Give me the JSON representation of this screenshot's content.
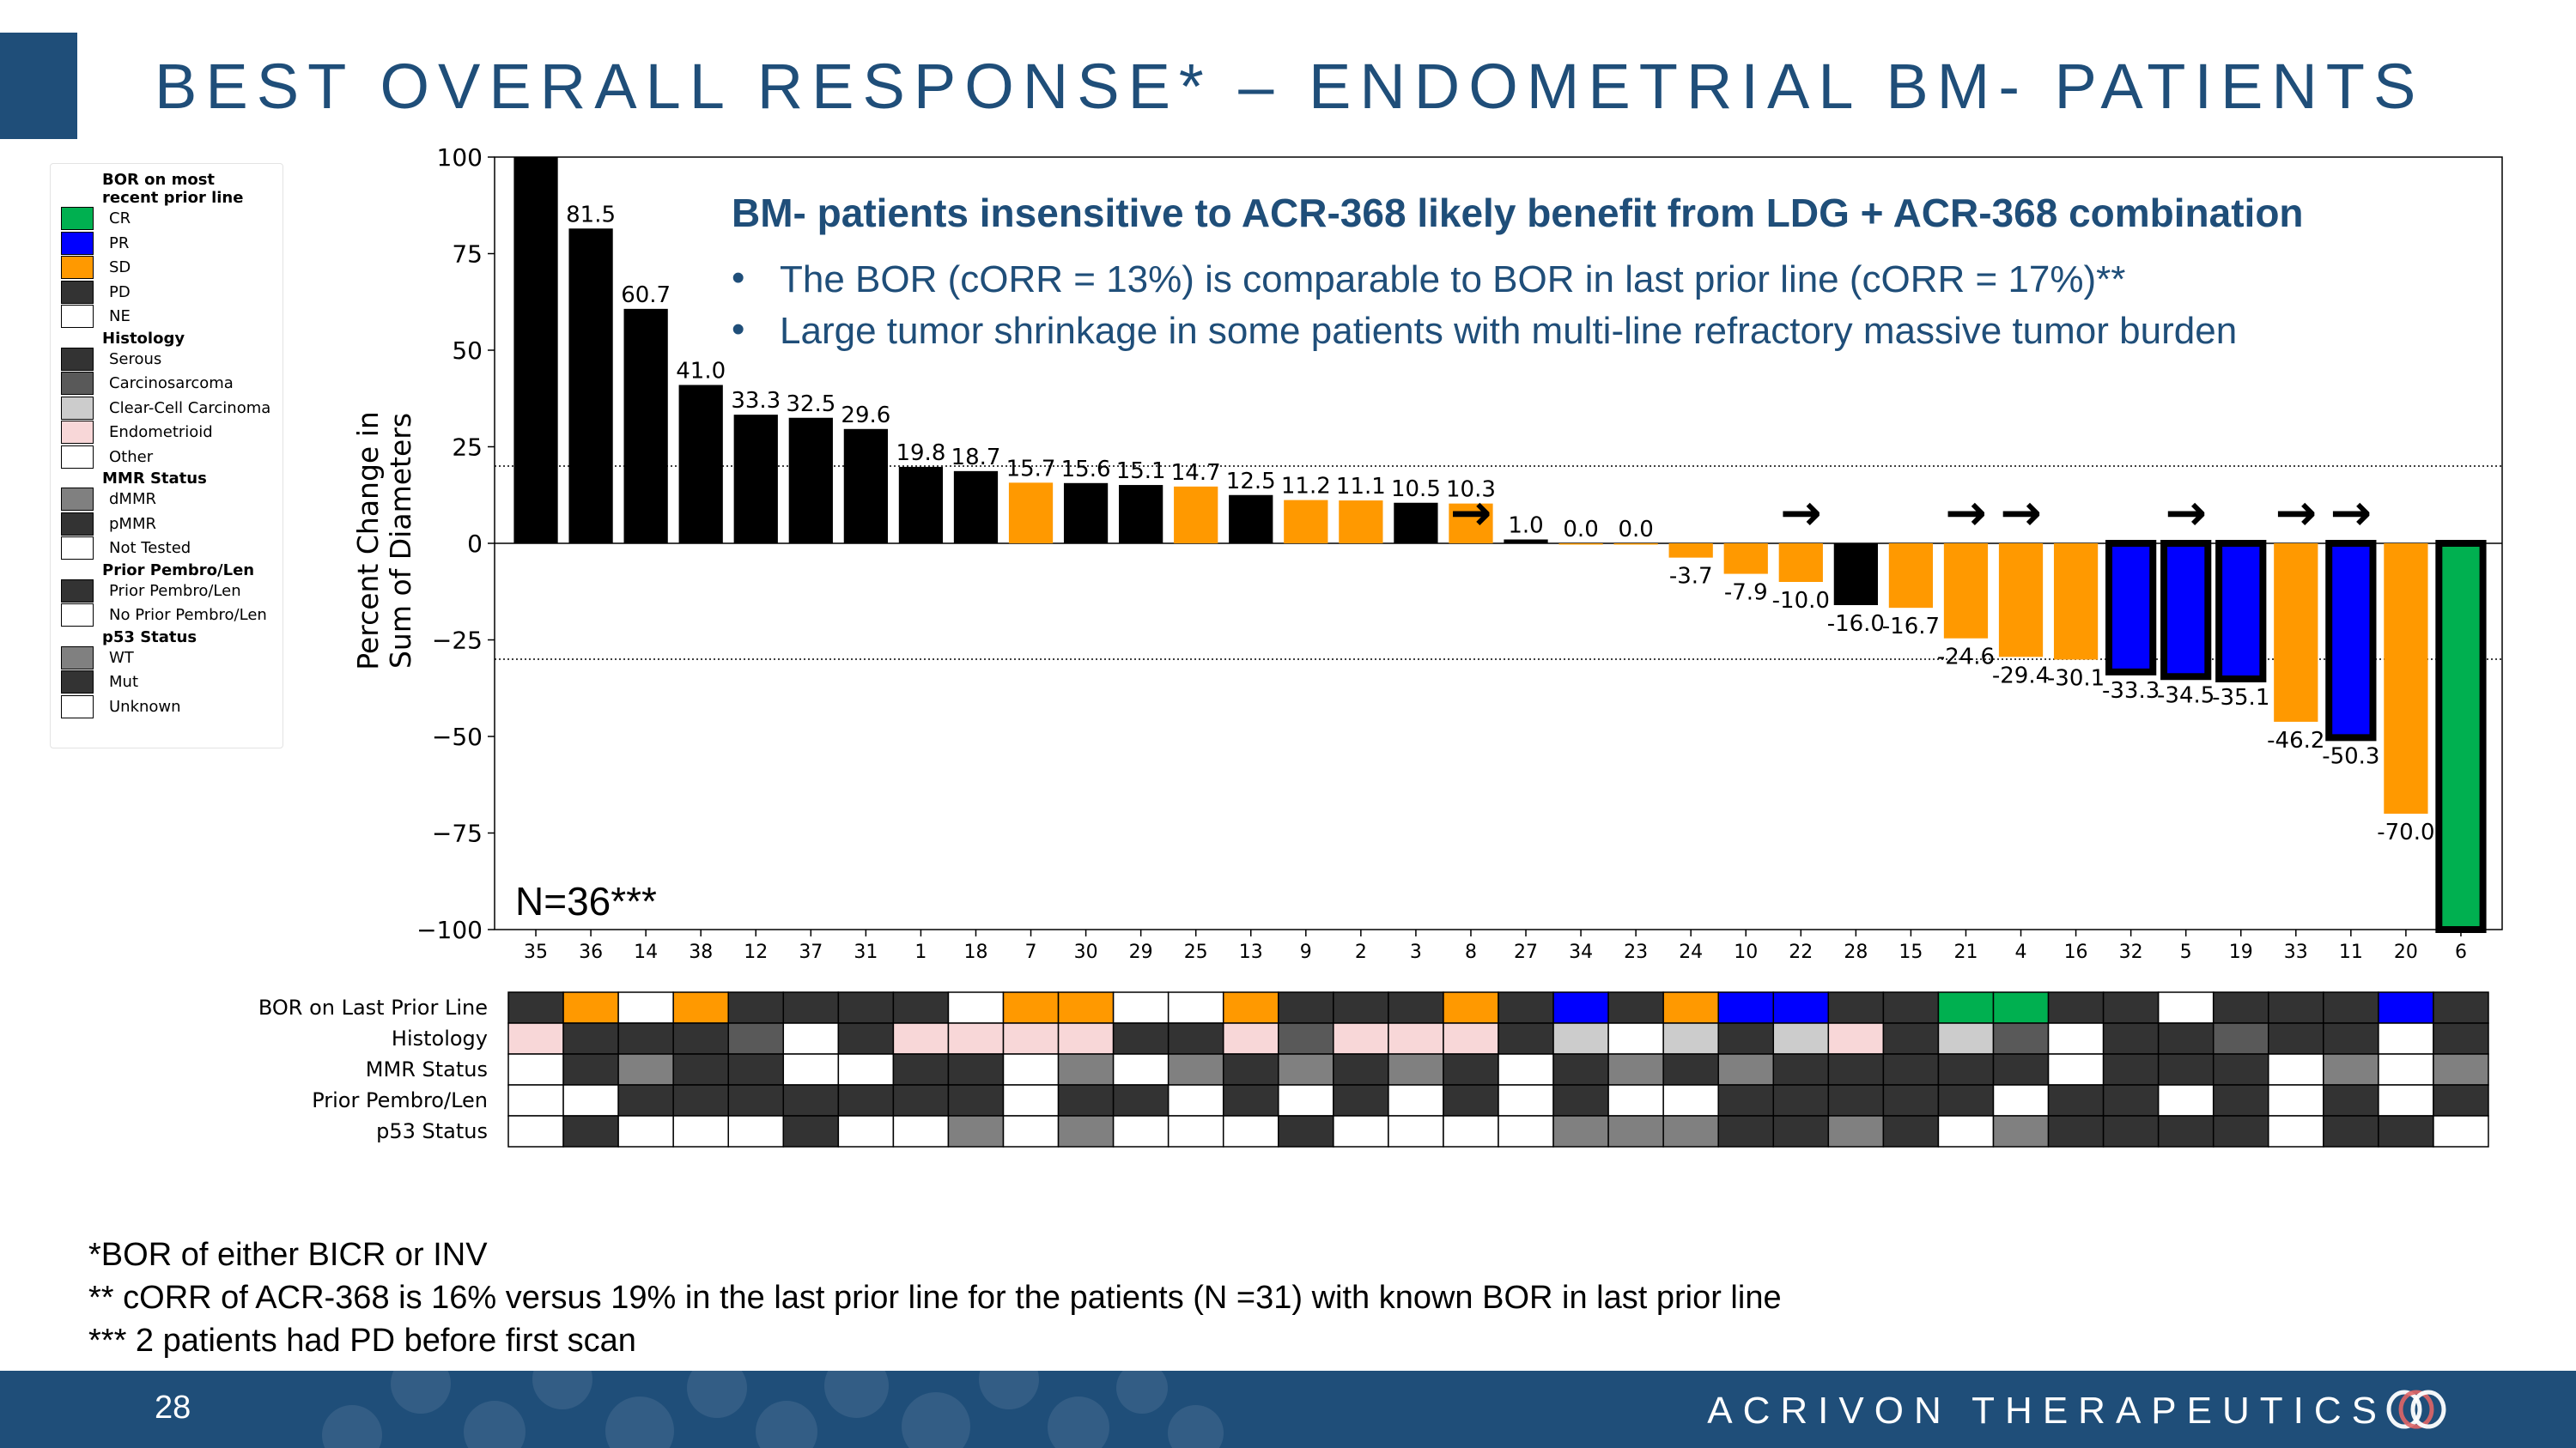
{
  "title": "BEST OVERALL RESPONSE* – ENDOMETRIAL BM- PATIENTS",
  "colors": {
    "brand": "#1f4e79",
    "CR": "#00b050",
    "PR": "#0000ff",
    "SD": "#ff9900",
    "PD": "#000000",
    "NE": "#ffffff",
    "dark": "#333333",
    "mid": "#595959",
    "grey": "#808080",
    "light_grey": "#cccccc",
    "pink": "#f8d7d8",
    "white": "#ffffff"
  },
  "legend": {
    "sections": [
      {
        "title": "BOR on most recent prior line",
        "items": [
          {
            "label": "CR",
            "color": "#00b050"
          },
          {
            "label": "PR",
            "color": "#0000ff"
          },
          {
            "label": "SD",
            "color": "#ff9900"
          },
          {
            "label": "PD",
            "color": "#333333"
          },
          {
            "label": "NE",
            "color": "#ffffff"
          }
        ]
      },
      {
        "title": "Histology",
        "items": [
          {
            "label": "Serous",
            "color": "#333333"
          },
          {
            "label": "Carcinosarcoma",
            "color": "#595959"
          },
          {
            "label": "Clear-Cell Carcinoma",
            "color": "#cccccc"
          },
          {
            "label": "Endometrioid",
            "color": "#f8d7d8"
          },
          {
            "label": "Other",
            "color": "#ffffff"
          }
        ]
      },
      {
        "title": "MMR Status",
        "items": [
          {
            "label": "dMMR",
            "color": "#808080"
          },
          {
            "label": "pMMR",
            "color": "#333333"
          },
          {
            "label": "Not Tested",
            "color": "#ffffff"
          }
        ]
      },
      {
        "title": "Prior Pembro/Len",
        "items": [
          {
            "label": "Prior Pembro/Len",
            "color": "#333333"
          },
          {
            "label": "No Prior Pembro/Len",
            "color": "#ffffff"
          }
        ]
      },
      {
        "title": "p53 Status",
        "items": [
          {
            "label": "WT",
            "color": "#808080"
          },
          {
            "label": "Mut",
            "color": "#333333"
          },
          {
            "label": "Unknown",
            "color": "#ffffff"
          }
        ]
      }
    ]
  },
  "callout": {
    "headline": "BM- patients insensitive to ACR-368 likely benefit from LDG + ACR-368 combination",
    "bullets": [
      "The BOR (cORR = 13%) is comparable to BOR in last prior line (cORR = 17%)**",
      "Large tumor shrinkage in some patients with multi-line refractory massive tumor burden"
    ],
    "bullet_symbol": "•"
  },
  "n_label": "N=36***",
  "chart_data": {
    "type": "bar",
    "title": "",
    "xlabel": "",
    "ylabel": "Percent Change in Sum of Diameters",
    "ylabel_lines": [
      "Percent Change in",
      "Sum of Diameters"
    ],
    "ylim": [
      -100,
      100
    ],
    "yticks": [
      -100,
      -75,
      -50,
      -25,
      0,
      25,
      50,
      75,
      100
    ],
    "ytick_labels": [
      "−100",
      "−75",
      "−50",
      "−25",
      "0",
      "25",
      "50",
      "75",
      "100"
    ],
    "reference_lines": [
      20,
      -30
    ],
    "categories": [
      "35",
      "36",
      "14",
      "38",
      "12",
      "37",
      "31",
      "1",
      "18",
      "7",
      "30",
      "29",
      "25",
      "13",
      "9",
      "2",
      "3",
      "8",
      "27",
      "34",
      "23",
      "24",
      "10",
      "22",
      "28",
      "15",
      "21",
      "4",
      "16",
      "32",
      "5",
      "19",
      "33",
      "11",
      "20",
      "6"
    ],
    "values": [
      100,
      81.5,
      60.7,
      41.0,
      33.3,
      32.5,
      29.6,
      19.8,
      18.7,
      15.7,
      15.6,
      15.1,
      14.7,
      12.5,
      11.2,
      11.1,
      10.5,
      10.3,
      1.0,
      0.0,
      0.0,
      -3.7,
      -7.9,
      -10.0,
      -16.0,
      -16.7,
      -24.6,
      -29.4,
      -30.1,
      -33.3,
      -34.5,
      -35.1,
      -46.2,
      -50.3,
      -70.0,
      -100
    ],
    "value_labels": [
      "",
      "81.5",
      "60.7",
      "41.0",
      "33.3",
      "32.5",
      "29.6",
      "19.8",
      "18.7",
      "15.7",
      "15.6",
      "15.1",
      "14.7",
      "12.5",
      "11.2",
      "11.1",
      "10.5",
      "10.3",
      "1.0",
      "0.0",
      "0.0",
      "-3.7",
      "-7.9",
      "-10.0",
      "-16.0",
      "-16.7",
      "-24.6",
      "-29.4",
      "-30.1",
      "-33.3",
      "-34.5",
      "-35.1",
      "-46.2",
      "-50.3",
      "-70.0",
      ""
    ],
    "bor": [
      "PD",
      "PD",
      "PD",
      "PD",
      "PD",
      "PD",
      "PD",
      "PD",
      "PD",
      "SD",
      "PD",
      "PD",
      "SD",
      "PD",
      "SD",
      "SD",
      "PD",
      "SD",
      "PD",
      "SD",
      "SD",
      "SD",
      "SD",
      "SD",
      "PD",
      "SD",
      "SD",
      "SD",
      "SD",
      "PR",
      "PR",
      "PR",
      "SD",
      "PR",
      "SD",
      "CR"
    ],
    "confirmed_outline": [
      false,
      false,
      false,
      false,
      false,
      false,
      false,
      false,
      false,
      false,
      false,
      false,
      false,
      false,
      false,
      false,
      false,
      false,
      false,
      false,
      false,
      false,
      false,
      false,
      false,
      false,
      false,
      false,
      false,
      true,
      true,
      true,
      false,
      true,
      false,
      true
    ],
    "ongoing_arrows": [
      "8",
      "22",
      "21",
      "4",
      "5",
      "33",
      "11"
    ],
    "arrow_symbol": "→",
    "tracks": [
      {
        "label": "BOR on Last Prior Line",
        "values": [
          "PD",
          "SD",
          "NE",
          "SD",
          "PD",
          "PD",
          "PD",
          "PD",
          "NE",
          "SD",
          "SD",
          "NE",
          "NE",
          "SD",
          "PD",
          "PD",
          "PD",
          "SD",
          "PD",
          "PR",
          "PD",
          "SD",
          "PR",
          "PR",
          "PD",
          "PD",
          "CR",
          "CR",
          "PD",
          "PD",
          "NE",
          "PD",
          "PD",
          "PD",
          "PR",
          "PD"
        ]
      },
      {
        "label": "Histology",
        "values": [
          "Endometrioid",
          "Serous",
          "Serous",
          "Serous",
          "Carcinosarcoma",
          "Other",
          "Serous",
          "Endometrioid",
          "Endometrioid",
          "Endometrioid",
          "Endometrioid",
          "Serous",
          "Serous",
          "Endometrioid",
          "Carcinosarcoma",
          "Endometrioid",
          "Endometrioid",
          "Endometrioid",
          "Serous",
          "Clear-Cell Carcinoma",
          "Other",
          "Clear-Cell Carcinoma",
          "Serous",
          "Clear-Cell Carcinoma",
          "Endometrioid",
          "Serous",
          "Clear-Cell Carcinoma",
          "Carcinosarcoma",
          "Other",
          "Serous",
          "Serous",
          "Carcinosarcoma",
          "Serous",
          "Serous",
          "Other",
          "Serous"
        ]
      },
      {
        "label": "MMR Status",
        "values": [
          "Not Tested",
          "pMMR",
          "dMMR",
          "pMMR",
          "pMMR",
          "Not Tested",
          "Not Tested",
          "pMMR",
          "pMMR",
          "Not Tested",
          "dMMR",
          "Not Tested",
          "dMMR",
          "pMMR",
          "dMMR",
          "pMMR",
          "dMMR",
          "pMMR",
          "Not Tested",
          "pMMR",
          "dMMR",
          "pMMR",
          "dMMR",
          "pMMR",
          "pMMR",
          "pMMR",
          "pMMR",
          "pMMR",
          "Not Tested",
          "pMMR",
          "pMMR",
          "pMMR",
          "Not Tested",
          "dMMR",
          "Not Tested",
          "dMMR"
        ]
      },
      {
        "label": "Prior Pembro/Len",
        "values": [
          "No",
          "No",
          "Prior",
          "Prior",
          "Prior",
          "Prior",
          "Prior",
          "Prior",
          "Prior",
          "No",
          "Prior",
          "Prior",
          "No",
          "Prior",
          "No",
          "Prior",
          "No",
          "Prior",
          "No",
          "Prior",
          "No",
          "No",
          "Prior",
          "Prior",
          "Prior",
          "Prior",
          "Prior",
          "No",
          "Prior",
          "Prior",
          "No",
          "Prior",
          "No",
          "Prior",
          "No",
          "Prior"
        ]
      },
      {
        "label": "p53 Status",
        "values": [
          "Unknown",
          "Mut",
          "Unknown",
          "Unknown",
          "Unknown",
          "Mut",
          "Unknown",
          "Unknown",
          "WT",
          "Unknown",
          "WT",
          "Unknown",
          "Unknown",
          "Unknown",
          "Mut",
          "Unknown",
          "Unknown",
          "Unknown",
          "Unknown",
          "WT",
          "WT",
          "WT",
          "Mut",
          "Mut",
          "WT",
          "Mut",
          "Unknown",
          "WT",
          "Mut",
          "Mut",
          "Mut",
          "Mut",
          "Unknown",
          "Mut",
          "Mut",
          "Unknown"
        ]
      }
    ]
  },
  "footnotes": [
    "*BOR of either BICR or INV",
    "** cORR of ACR-368 is 16% versus 19% in the last prior line for the patients (N =31) with known BOR in last prior line",
    "*** 2 patients had PD before first scan"
  ],
  "footer": {
    "page_number": "28",
    "company": "ACRIVON THERAPEUTICS",
    "logo_icon": "acrivon-logo-icon"
  }
}
